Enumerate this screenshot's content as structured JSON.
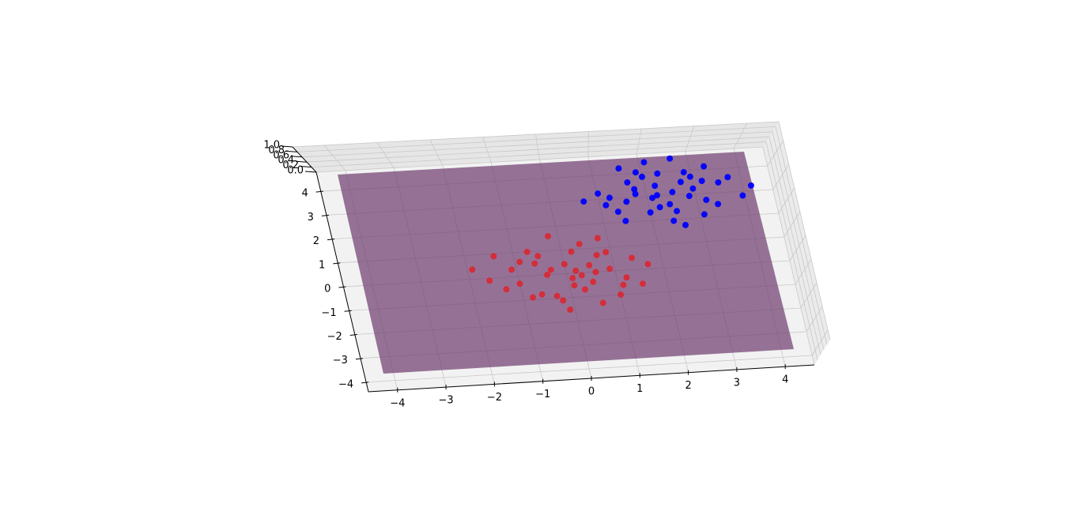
{
  "chart_data": {
    "type": "scatter3d",
    "xlim": [
      -4.6,
      4.6
    ],
    "ylim": [
      -4.4,
      4.8
    ],
    "zlim": [
      0,
      1
    ],
    "xticks": [
      {
        "value": -4,
        "label": "−4"
      },
      {
        "value": -3,
        "label": "−3"
      },
      {
        "value": -2,
        "label": "−2"
      },
      {
        "value": -1,
        "label": "−1"
      },
      0,
      1,
      2,
      3,
      4
    ],
    "yticks": [
      {
        "value": -4,
        "label": "−4"
      },
      {
        "value": -3,
        "label": "−3"
      },
      {
        "value": -2,
        "label": "−2"
      },
      {
        "value": -1,
        "label": "−1"
      },
      0,
      1,
      2,
      3,
      4
    ],
    "zticks": [
      {
        "value": 0,
        "label": "0.0"
      },
      0.2,
      0.4,
      0.6,
      0.8,
      {
        "value": 1,
        "label": "1.0"
      }
    ],
    "grid": true,
    "series": [
      {
        "color": "#ff0000",
        "x": [
          -0.3,
          0.5,
          -1.1,
          0.2,
          0.9,
          -0.6,
          0.1,
          1.4,
          -1.6,
          0.4,
          -0.2,
          0.7,
          -0.9,
          1.1,
          -0.4,
          0.0,
          0.6,
          -1.3,
          0.3,
          -0.7,
          1.7,
          -0.1,
          0.8,
          -1.9,
          0.2,
          -0.5,
          1.2,
          -0.8,
          0.5,
          -0.2,
          1.0,
          -1.4,
          0.1,
          -0.6,
          0.9,
          0.3,
          -1.0,
          1.5,
          -0.3,
          0.6
        ],
        "y": [
          0.2,
          -0.4,
          0.3,
          0.9,
          0.1,
          -0.8,
          -0.2,
          0.5,
          -0.1,
          1.2,
          -1.1,
          0.7,
          0.6,
          -0.6,
          0.0,
          0.4,
          -1.3,
          -0.5,
          -0.7,
          1.0,
          0.2,
          -1.5,
          1.4,
          0.4,
          0.1,
          0.8,
          -0.3,
          -0.9,
          0.3,
          1.6,
          -1.0,
          0.9,
          -0.5,
          0.5,
          0.8,
          -0.1,
          -0.3,
          -0.6,
          -0.9,
          0.0
        ],
        "z": [
          0,
          0,
          0,
          0,
          0,
          0,
          0,
          0,
          0,
          0,
          0,
          0,
          0,
          0,
          0,
          0,
          0,
          0,
          0,
          0,
          0,
          0,
          0,
          0,
          0,
          0,
          0,
          0,
          0,
          0,
          0,
          0,
          0,
          0,
          0,
          0,
          0,
          0,
          0,
          0
        ]
      },
      {
        "color": "#0000ff",
        "x": [
          2.3,
          1.5,
          2.9,
          1.8,
          2.6,
          1.1,
          2.0,
          3.2,
          1.4,
          2.7,
          1.9,
          0.6,
          2.4,
          3.6,
          1.6,
          2.1,
          2.8,
          1.2,
          2.5,
          3.0,
          0.9,
          2.2,
          1.7,
          3.4,
          2.0,
          1.3,
          2.6,
          3.1,
          1.8,
          2.4,
          1.0,
          2.9,
          2.2,
          1.6,
          3.8,
          2.0,
          2.7,
          1.4,
          2.3,
          1.9
        ],
        "y": [
          2.1,
          2.6,
          1.7,
          1.3,
          2.9,
          2.0,
          1.5,
          2.4,
          1.8,
          2.2,
          3.4,
          1.9,
          0.7,
          1.8,
          2.3,
          2.9,
          1.1,
          1.4,
          2.5,
          3.1,
          2.2,
          1.6,
          3.0,
          2.6,
          2.0,
          1.0,
          1.9,
          1.5,
          2.8,
          3.5,
          1.7,
          2.5,
          0.9,
          2.1,
          2.2,
          2.4,
          2.7,
          3.2,
          1.3,
          1.9
        ],
        "z": [
          1,
          1,
          1,
          1,
          1,
          1,
          1,
          1,
          1,
          1,
          1,
          1,
          1,
          1,
          1,
          1,
          1,
          1,
          1,
          1,
          1,
          1,
          1,
          1,
          1,
          1,
          1,
          1,
          1,
          1,
          1,
          1,
          1,
          1,
          1,
          1,
          1,
          1,
          1,
          1
        ]
      }
    ]
  }
}
